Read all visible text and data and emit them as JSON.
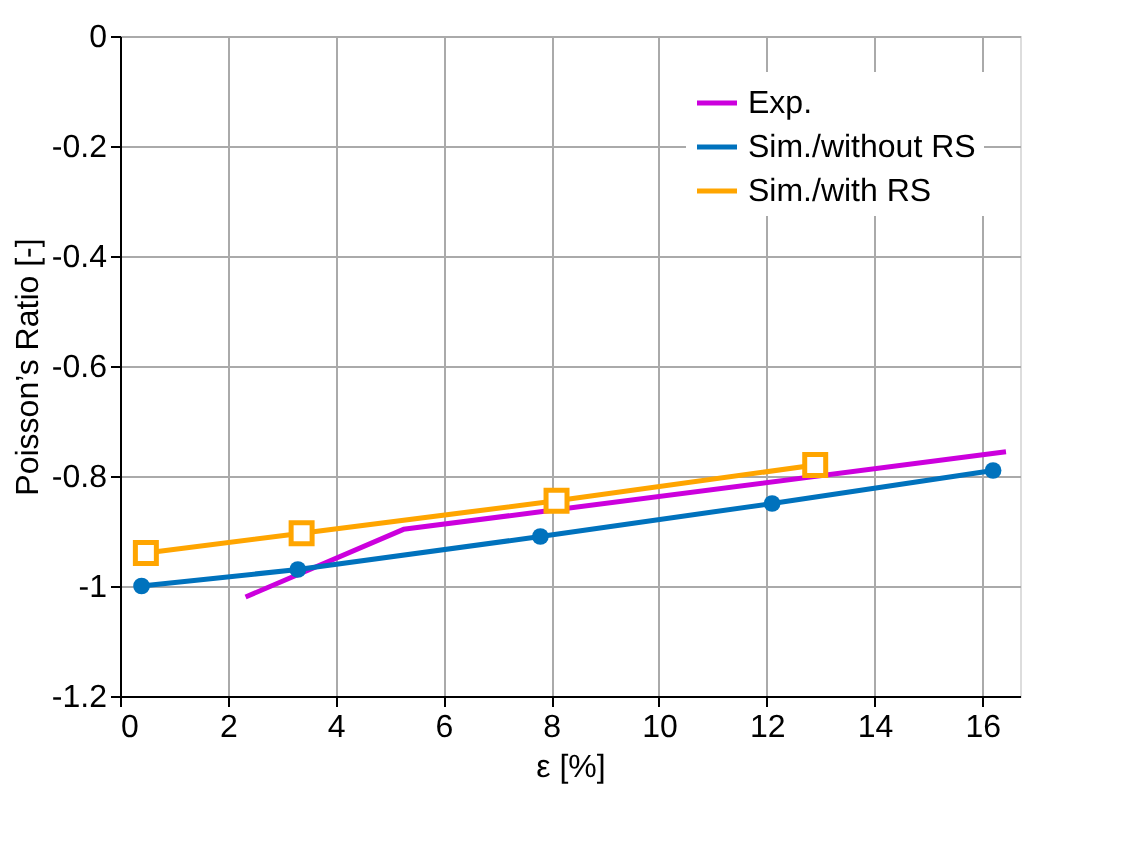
{
  "chart_data": {
    "type": "line",
    "xlabel": "ε [%]",
    "ylabel": "Poisson’s Ratio [-]",
    "xlim": [
      0,
      16.7
    ],
    "xticks": [
      0,
      2,
      4,
      6,
      8,
      10,
      12,
      14,
      16
    ],
    "ylim": [
      -1.2,
      0
    ],
    "yticks": [
      0,
      -0.2,
      -0.4,
      -0.6,
      -0.8,
      -1,
      -1.2
    ],
    "grid": true,
    "legend": "top right",
    "line_style": "solid",
    "series": [
      {
        "name": "Exp.",
        "color": "#cc00dd",
        "marker": "none",
        "x": [
          2.33,
          5.26,
          16.44
        ],
        "values": [
          -1.02,
          -0.897,
          -0.756
        ]
      },
      {
        "name": "Sim./without RS",
        "color": "#0072bd",
        "marker": "circle",
        "x": [
          0.4,
          3.3,
          7.8,
          12.1,
          16.2
        ],
        "values": [
          -1.0,
          -0.97,
          -0.91,
          -0.85,
          -0.79
        ]
      },
      {
        "name": "Sim./with RS",
        "color": "#ffa500",
        "marker": "square",
        "x": [
          0.48,
          3.37,
          8.1,
          12.9
        ],
        "values": [
          -0.94,
          -0.904,
          -0.845,
          -0.78
        ]
      }
    ]
  }
}
